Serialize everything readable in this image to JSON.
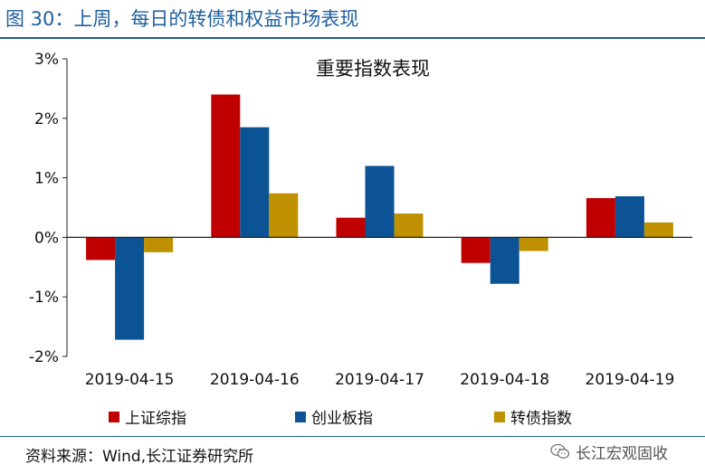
{
  "figure_title": "图 30：上周，每日的转债和权益市场表现",
  "source_text": "资料来源：Wind,长江证券研究所",
  "watermark_text": "长江宏观固收",
  "watermark_icon": "wechat-icon",
  "colors": {
    "brand_blue": "#1f5f9e",
    "series": [
      "#c00000",
      "#0b5394",
      "#bf9000"
    ]
  },
  "chart_data": {
    "type": "bar",
    "title": "重要指数表现",
    "xlabel": "",
    "ylabel": "",
    "categories": [
      "2019-04-15",
      "2019-04-16",
      "2019-04-17",
      "2019-04-18",
      "2019-04-19"
    ],
    "series": [
      {
        "name": "上证综指",
        "values": [
          -0.38,
          2.4,
          0.33,
          -0.43,
          0.66
        ]
      },
      {
        "name": "创业板指",
        "values": [
          -1.72,
          1.85,
          1.2,
          -0.78,
          0.69
        ]
      },
      {
        "name": "转债指数",
        "values": [
          -0.25,
          0.74,
          0.4,
          -0.23,
          0.25
        ]
      }
    ],
    "ylim": [
      -2,
      3
    ],
    "yticks": [
      -2,
      -1,
      0,
      1,
      2,
      3
    ],
    "ytick_labels": [
      "-2%",
      "-1%",
      "0%",
      "1%",
      "2%",
      "3%"
    ],
    "grid": false,
    "legend_position": "bottom"
  }
}
